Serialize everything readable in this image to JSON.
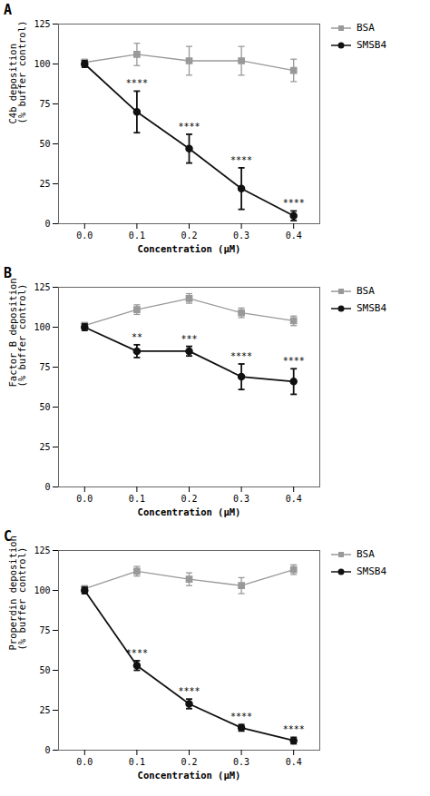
{
  "chart_data": [
    {
      "type": "line",
      "title": "A",
      "xlabel": "Concentration (μM)",
      "ylabel": "C4b deposition\n(% buffer control)",
      "x": [
        0.0,
        0.1,
        0.2,
        0.3,
        0.4
      ],
      "series": [
        {
          "name": "BSA",
          "color": "#999999",
          "marker": "square",
          "values": [
            101,
            106,
            102,
            102,
            96
          ],
          "errors": [
            2,
            7,
            9,
            9,
            7
          ]
        },
        {
          "name": "SMSB4",
          "color": "#111111",
          "marker": "circle",
          "values": [
            100,
            70,
            47,
            22,
            5
          ],
          "errors": [
            2,
            13,
            9,
            13,
            3
          ]
        }
      ],
      "annotations": [
        {
          "x": 0.1,
          "series": "SMSB4",
          "text": "****"
        },
        {
          "x": 0.2,
          "series": "SMSB4",
          "text": "****"
        },
        {
          "x": 0.3,
          "series": "SMSB4",
          "text": "****"
        },
        {
          "x": 0.4,
          "series": "SMSB4",
          "text": "****"
        }
      ],
      "xlim": [
        -0.05,
        0.45
      ],
      "xticks": [
        {
          "value": 0.0,
          "label": "0.0"
        },
        0.1,
        0.2,
        0.3,
        0.4
      ],
      "ylim": [
        0,
        125
      ],
      "yticks": [
        0,
        25,
        50,
        75,
        100,
        125
      ],
      "grid": false,
      "legend": "right"
    },
    {
      "type": "line",
      "title": "B",
      "xlabel": "Concentration (μM)",
      "ylabel": "Factor B deposition\n(% buffer control)",
      "x": [
        0.0,
        0.1,
        0.2,
        0.3,
        0.4
      ],
      "series": [
        {
          "name": "BSA",
          "color": "#999999",
          "marker": "square",
          "values": [
            101,
            111,
            118,
            109,
            104
          ],
          "errors": [
            2,
            3,
            3,
            3,
            3
          ]
        },
        {
          "name": "SMSB4",
          "color": "#111111",
          "marker": "circle",
          "values": [
            100,
            85,
            85,
            69,
            66
          ],
          "errors": [
            2,
            4,
            3,
            8,
            8
          ]
        }
      ],
      "annotations": [
        {
          "x": 0.1,
          "series": "SMSB4",
          "text": "**"
        },
        {
          "x": 0.2,
          "series": "SMSB4",
          "text": "***"
        },
        {
          "x": 0.3,
          "series": "SMSB4",
          "text": "****"
        },
        {
          "x": 0.4,
          "series": "SMSB4",
          "text": "****"
        }
      ],
      "xlim": [
        -0.05,
        0.45
      ],
      "xticks": [
        {
          "value": 0.0,
          "label": "0.0"
        },
        0.1,
        0.2,
        0.3,
        0.4
      ],
      "ylim": [
        0,
        125
      ],
      "yticks": [
        0,
        25,
        50,
        75,
        100,
        125
      ],
      "grid": false,
      "legend": "right"
    },
    {
      "type": "line",
      "title": "C",
      "xlabel": "Concentration (μM)",
      "ylabel": "Properdin deposition\n(% buffer control)",
      "x": [
        0.0,
        0.1,
        0.2,
        0.3,
        0.4
      ],
      "series": [
        {
          "name": "BSA",
          "color": "#999999",
          "marker": "square",
          "values": [
            101,
            112,
            107,
            103,
            113
          ],
          "errors": [
            2,
            3,
            4,
            5,
            3
          ]
        },
        {
          "name": "SMSB4",
          "color": "#111111",
          "marker": "circle",
          "values": [
            100,
            53,
            29,
            14,
            6
          ],
          "errors": [
            2,
            3,
            3,
            2,
            2
          ]
        }
      ],
      "annotations": [
        {
          "x": 0.1,
          "series": "SMSB4",
          "text": "****"
        },
        {
          "x": 0.2,
          "series": "SMSB4",
          "text": "****"
        },
        {
          "x": 0.3,
          "series": "SMSB4",
          "text": "****"
        },
        {
          "x": 0.4,
          "series": "SMSB4",
          "text": "****"
        }
      ],
      "xlim": [
        -0.05,
        0.45
      ],
      "xticks": [
        {
          "value": 0.0,
          "label": "0.0"
        },
        0.1,
        0.2,
        0.3,
        0.4
      ],
      "ylim": [
        0,
        125
      ],
      "yticks": [
        0,
        25,
        50,
        75,
        100,
        125
      ],
      "grid": false,
      "legend": "right"
    }
  ]
}
